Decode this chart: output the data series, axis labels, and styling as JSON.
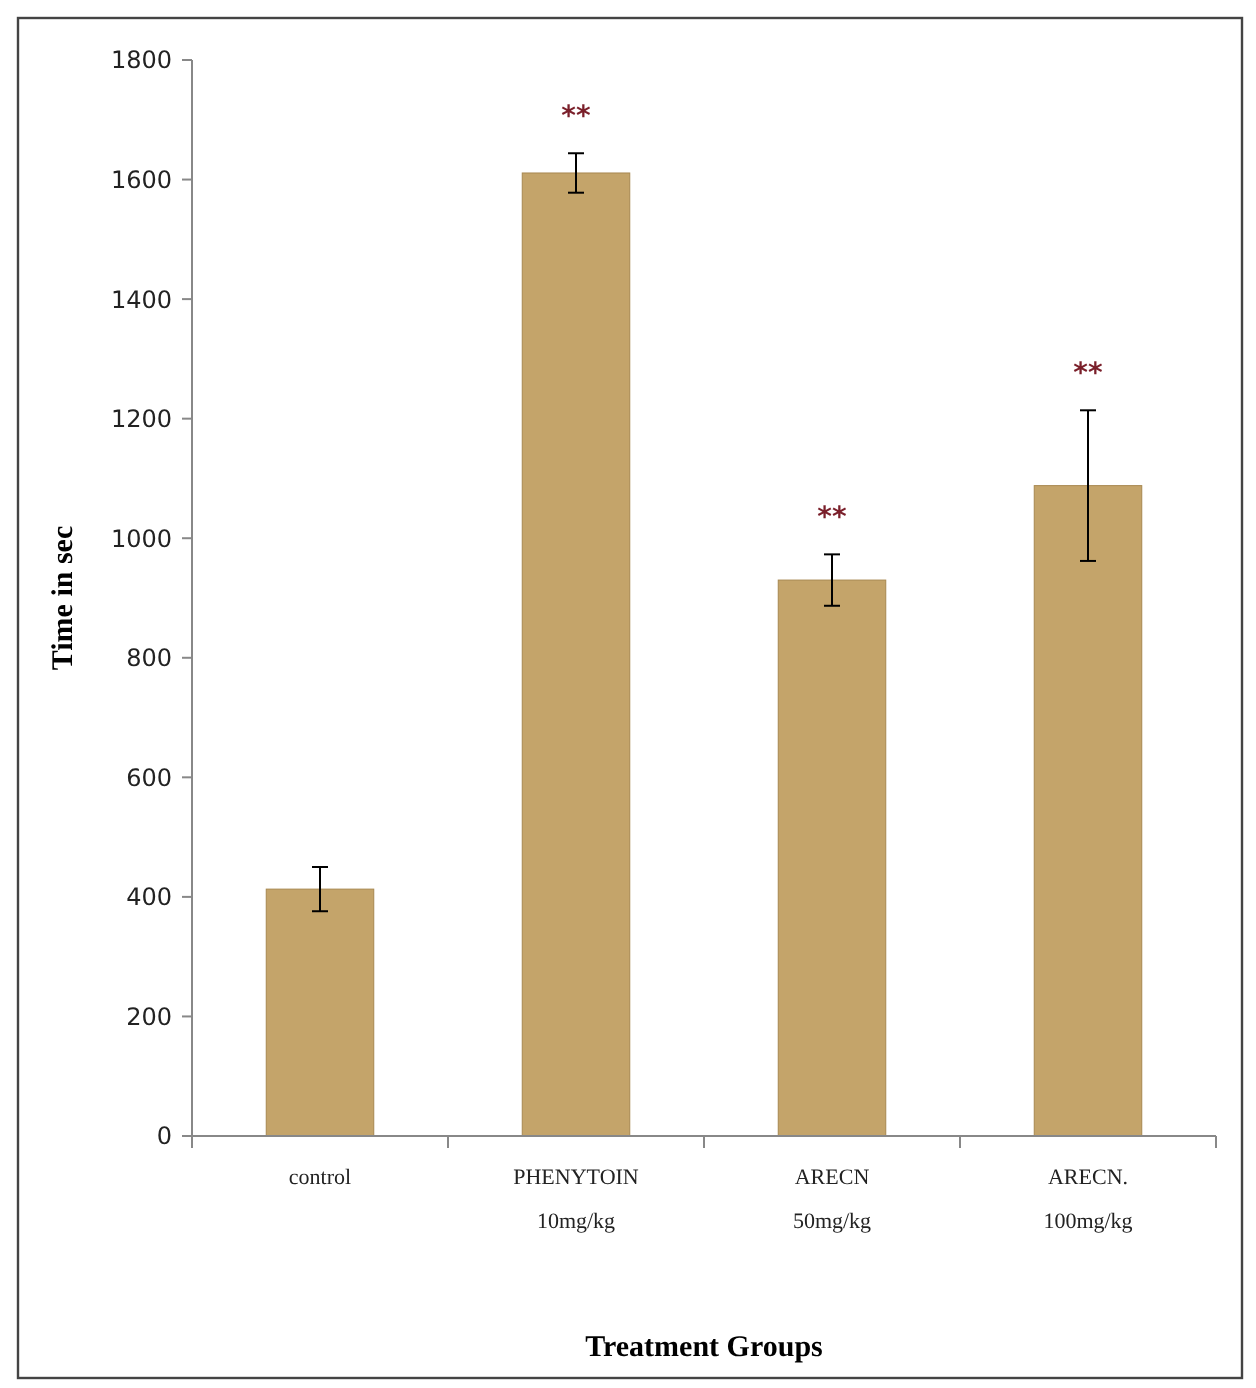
{
  "chart_data": {
    "type": "bar",
    "ylabel": "Time in sec",
    "xlabel": "Treatment Groups",
    "categories": [
      "control",
      "PHENYTOIN\n10mg/kg",
      "ARECN\n50mg/kg",
      "ARECN.\n100mg/kg"
    ],
    "values": [
      413,
      1611,
      930,
      1088
    ],
    "errors": [
      37,
      33,
      43,
      126
    ],
    "color": "#c4a46a",
    "ylim": [
      0,
      1800
    ],
    "yticks": [
      0,
      200,
      400,
      600,
      800,
      1000,
      1200,
      1400,
      1600,
      1800
    ],
    "grid": false,
    "annotations": [
      "**",
      "**",
      "**"
    ]
  }
}
